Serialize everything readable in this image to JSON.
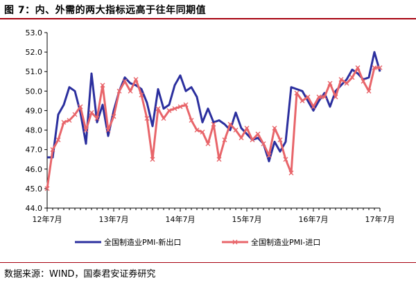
{
  "title": "图 7：内、外需的两大指标远高于往年同期值",
  "source": "数据来源：WIND，国泰君安证券研究",
  "colors": {
    "rule": "#a6000e",
    "export_line": "#2b2f9e",
    "import_line": "#e8656a"
  },
  "chart_data": {
    "type": "line",
    "x_tick_labels": [
      "12年7月",
      "13年7月",
      "14年7月",
      "15年7月",
      "16年7月",
      "17年7月"
    ],
    "x_tick_index": [
      0,
      12,
      24,
      36,
      48,
      60
    ],
    "ylim": [
      44.0,
      53.0
    ],
    "y_ticks": [
      "44.0",
      "45.0",
      "46.0",
      "47.0",
      "48.0",
      "49.0",
      "50.0",
      "51.0",
      "52.0",
      "53.0"
    ],
    "legend_position": "bottom",
    "series": [
      {
        "name": "全国制造业PMI-新出口",
        "marker": "none",
        "values": [
          46.6,
          46.6,
          48.8,
          49.3,
          50.2,
          50.0,
          48.9,
          47.3,
          50.9,
          48.4,
          49.3,
          47.7,
          49.0,
          50.0,
          50.7,
          50.4,
          50.3,
          50.1,
          49.4,
          48.2,
          50.1,
          49.1,
          49.3,
          50.3,
          50.8,
          50.0,
          50.2,
          49.7,
          48.4,
          49.1,
          48.4,
          48.5,
          48.3,
          48.0,
          48.9,
          48.1,
          47.8,
          47.5,
          47.6,
          47.3,
          46.4,
          47.4,
          46.9,
          47.4,
          50.2,
          50.1,
          50.0,
          49.5,
          49.0,
          49.5,
          49.9,
          49.2,
          50.0,
          50.3,
          50.6,
          51.1,
          50.9,
          50.6,
          50.7,
          52.0,
          51.0
        ]
      },
      {
        "name": "全国制造业PMI-进口",
        "marker": "x",
        "values": [
          45.0,
          47.0,
          47.5,
          48.4,
          48.5,
          48.8,
          49.2,
          48.0,
          48.9,
          48.6,
          50.3,
          48.0,
          48.7,
          50.0,
          50.5,
          50.0,
          50.6,
          49.8,
          48.6,
          46.5,
          49.1,
          48.6,
          49.0,
          49.1,
          49.2,
          49.3,
          48.5,
          48.0,
          47.9,
          47.3,
          48.3,
          46.5,
          47.5,
          48.3,
          48.0,
          47.6,
          48.1,
          47.5,
          47.8,
          47.3,
          46.7,
          48.1,
          47.5,
          46.5,
          45.8,
          49.9,
          49.5,
          49.7,
          49.2,
          49.7,
          49.7,
          50.4,
          49.7,
          50.6,
          50.4,
          50.7,
          51.2,
          50.5,
          50.0,
          51.2,
          51.2
        ]
      }
    ]
  }
}
